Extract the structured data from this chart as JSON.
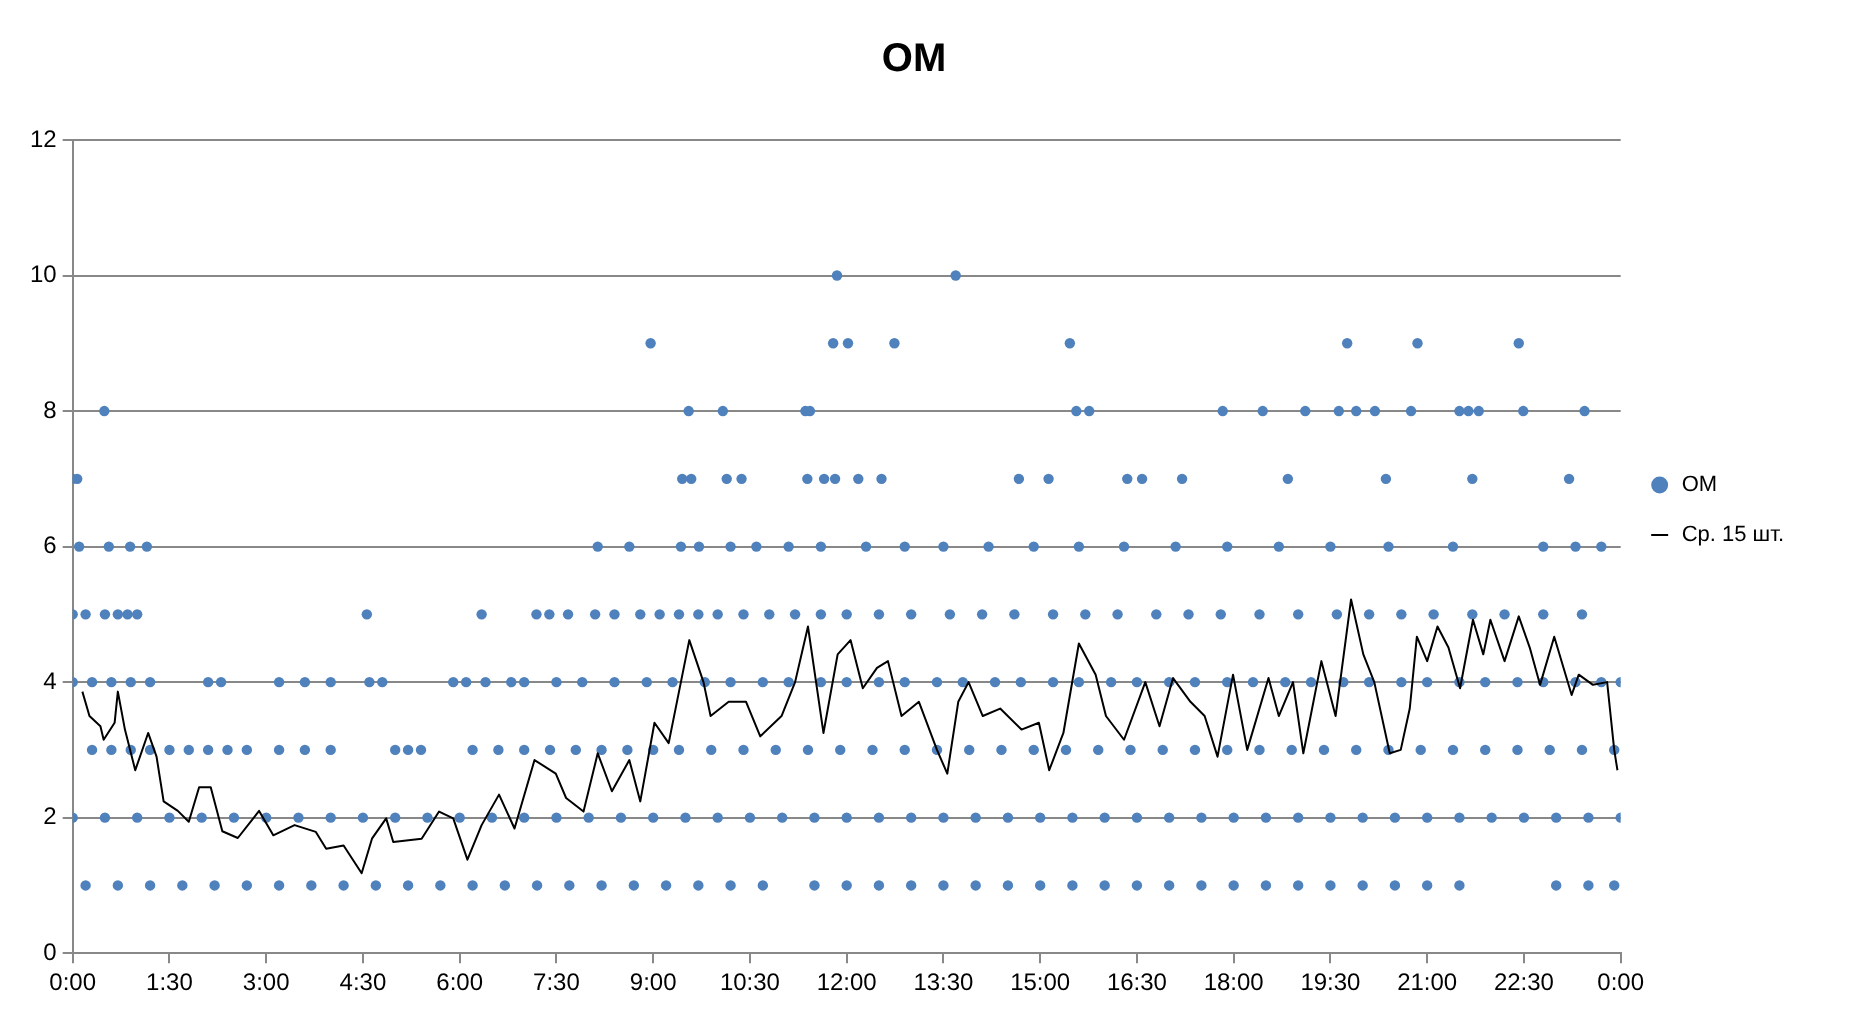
{
  "chart_data": {
    "type": "scatter",
    "title": "ОМ",
    "xlim": [
      0,
      24
    ],
    "xticks": [
      {
        "value": 0,
        "label": "0:00"
      },
      {
        "value": 1.5,
        "label": "1:30"
      },
      {
        "value": 3,
        "label": "3:00"
      },
      {
        "value": 4.5,
        "label": "4:30"
      },
      {
        "value": 6,
        "label": "6:00"
      },
      {
        "value": 7.5,
        "label": "7:30"
      },
      {
        "value": 9,
        "label": "9:00"
      },
      {
        "value": 10.5,
        "label": "10:30"
      },
      {
        "value": 12,
        "label": "12:00"
      },
      {
        "value": 13.5,
        "label": "13:30"
      },
      {
        "value": 15,
        "label": "15:00"
      },
      {
        "value": 16.5,
        "label": "16:30"
      },
      {
        "value": 18,
        "label": "18:00"
      },
      {
        "value": 19.5,
        "label": "19:30"
      },
      {
        "value": 21,
        "label": "21:00"
      },
      {
        "value": 22.5,
        "label": "22:30"
      },
      {
        "value": 24,
        "label": "0:00"
      }
    ],
    "ylim": [
      0,
      12
    ],
    "yticks": [
      0,
      2,
      4,
      6,
      8,
      10,
      12
    ],
    "grid": "y",
    "legend": "right",
    "series": [
      {
        "type": "scatter",
        "name": "ОМ",
        "color": "#4f81bd",
        "marker": "circle",
        "x": [
          11.85,
          13.69,
          8.96,
          11.79,
          12.02,
          12.74,
          15.46,
          19.76,
          20.85,
          22.42,
          0.49,
          9.55,
          10.08,
          11.36,
          11.43,
          15.56,
          15.76,
          17.83,
          18.45,
          19.11,
          19.63,
          19.9,
          20.19,
          20.75,
          21.5,
          21.64,
          21.8,
          22.49,
          23.44,
          0.0,
          0.07,
          9.45,
          9.59,
          10.14,
          10.37,
          11.39,
          11.65,
          11.82,
          12.18,
          12.54,
          14.67,
          15.13,
          16.35,
          16.58,
          17.2,
          18.84,
          20.36,
          21.7,
          23.2,
          0.1,
          0.56,
          0.89,
          1.15,
          8.14,
          8.63,
          9.43,
          9.71,
          10.2,
          10.6,
          11.1,
          11.6,
          12.3,
          12.9,
          13.5,
          14.2,
          14.9,
          15.6,
          16.3,
          17.1,
          17.9,
          18.7,
          19.5,
          20.4,
          21.4,
          22.8,
          23.3,
          23.7,
          0.0,
          0.2,
          0.5,
          0.7,
          0.85,
          1.0,
          4.56,
          6.34,
          7.19,
          7.39,
          7.68,
          8.1,
          8.4,
          8.8,
          9.1,
          9.4,
          9.7,
          10.0,
          10.4,
          10.8,
          11.2,
          11.6,
          12.0,
          12.5,
          13.0,
          13.6,
          14.1,
          14.6,
          15.2,
          15.7,
          16.2,
          16.8,
          17.3,
          17.8,
          18.4,
          19.0,
          19.6,
          20.1,
          20.6,
          21.1,
          21.7,
          22.2,
          22.8,
          23.4,
          0.0,
          0.3,
          0.6,
          0.9,
          1.2,
          2.1,
          2.3,
          3.2,
          3.6,
          4.0,
          4.6,
          4.8,
          5.9,
          6.1,
          6.4,
          6.8,
          7.0,
          7.5,
          7.9,
          8.4,
          8.9,
          9.3,
          9.8,
          10.2,
          10.7,
          11.1,
          11.6,
          12.0,
          12.5,
          12.9,
          13.4,
          13.8,
          14.3,
          14.7,
          15.2,
          15.6,
          16.1,
          16.5,
          17.0,
          17.4,
          17.9,
          18.3,
          18.8,
          19.2,
          19.7,
          20.1,
          20.6,
          21.0,
          21.5,
          21.9,
          22.4,
          22.8,
          23.3,
          23.7,
          24.0,
          0.3,
          0.6,
          0.9,
          1.2,
          1.5,
          1.8,
          2.1,
          2.4,
          2.7,
          3.2,
          3.6,
          4.0,
          5.0,
          5.2,
          5.4,
          6.2,
          6.6,
          7.0,
          7.4,
          7.8,
          8.2,
          8.6,
          9.0,
          9.4,
          9.9,
          10.4,
          10.9,
          11.4,
          11.9,
          12.4,
          12.9,
          13.4,
          13.9,
          14.4,
          14.9,
          15.4,
          15.9,
          16.4,
          16.9,
          17.4,
          17.9,
          18.4,
          18.9,
          19.4,
          19.9,
          20.4,
          20.9,
          21.4,
          21.9,
          22.4,
          22.9,
          23.4,
          23.9,
          0.0,
          0.5,
          1.0,
          1.5,
          2.0,
          2.5,
          3.0,
          3.5,
          4.0,
          4.5,
          5.0,
          5.5,
          6.0,
          6.5,
          7.0,
          7.5,
          8.0,
          8.5,
          9.0,
          9.5,
          10.0,
          10.5,
          11.0,
          11.5,
          12.0,
          12.5,
          13.0,
          13.5,
          14.0,
          14.5,
          15.0,
          15.5,
          16.0,
          16.5,
          17.0,
          17.5,
          18.0,
          18.5,
          19.0,
          19.5,
          20.0,
          20.5,
          21.0,
          21.5,
          22.0,
          22.5,
          23.0,
          23.5,
          24.0,
          0.2,
          0.7,
          1.2,
          1.7,
          2.2,
          2.7,
          3.2,
          3.7,
          4.2,
          4.7,
          5.2,
          5.7,
          6.2,
          6.7,
          7.2,
          7.7,
          8.2,
          8.7,
          9.2,
          9.7,
          10.2,
          10.7,
          11.5,
          12.0,
          12.5,
          13.0,
          13.5,
          14.0,
          14.5,
          15.0,
          15.5,
          16.0,
          16.5,
          17.0,
          17.5,
          18.0,
          18.5,
          19.0,
          19.5,
          20.0,
          20.5,
          21.0,
          21.5,
          23.0,
          23.5,
          23.9
        ],
        "values": [
          10,
          10,
          9,
          9,
          9,
          9,
          9,
          9,
          9,
          9,
          8,
          8,
          8,
          8,
          8,
          8,
          8,
          8,
          8,
          8,
          8,
          8,
          8,
          8,
          8,
          8,
          8,
          8,
          8,
          7,
          7,
          7,
          7,
          7,
          7,
          7,
          7,
          7,
          7,
          7,
          7,
          7,
          7,
          7,
          7,
          7,
          7,
          7,
          7,
          6,
          6,
          6,
          6,
          6,
          6,
          6,
          6,
          6,
          6,
          6,
          6,
          6,
          6,
          6,
          6,
          6,
          6,
          6,
          6,
          6,
          6,
          6,
          6,
          6,
          6,
          6,
          6,
          5,
          5,
          5,
          5,
          5,
          5,
          5,
          5,
          5,
          5,
          5,
          5,
          5,
          5,
          5,
          5,
          5,
          5,
          5,
          5,
          5,
          5,
          5,
          5,
          5,
          5,
          5,
          5,
          5,
          5,
          5,
          5,
          5,
          5,
          5,
          5,
          5,
          5,
          5,
          5,
          5,
          5,
          5,
          5,
          4,
          4,
          4,
          4,
          4,
          4,
          4,
          4,
          4,
          4,
          4,
          4,
          4,
          4,
          4,
          4,
          4,
          4,
          4,
          4,
          4,
          4,
          4,
          4,
          4,
          4,
          4,
          4,
          4,
          4,
          4,
          4,
          4,
          4,
          4,
          4,
          4,
          4,
          4,
          4,
          4,
          4,
          4,
          4,
          4,
          4,
          4,
          4,
          4,
          4,
          4,
          4,
          4,
          4,
          4,
          3,
          3,
          3,
          3,
          3,
          3,
          3,
          3,
          3,
          3,
          3,
          3,
          3,
          3,
          3,
          3,
          3,
          3,
          3,
          3,
          3,
          3,
          3,
          3,
          3,
          3,
          3,
          3,
          3,
          3,
          3,
          3,
          3,
          3,
          3,
          3,
          3,
          3,
          3,
          3,
          3,
          3,
          3,
          3,
          3,
          3,
          3,
          3,
          3,
          3,
          3,
          3,
          3,
          2,
          2,
          2,
          2,
          2,
          2,
          2,
          2,
          2,
          2,
          2,
          2,
          2,
          2,
          2,
          2,
          2,
          2,
          2,
          2,
          2,
          2,
          2,
          2,
          2,
          2,
          2,
          2,
          2,
          2,
          2,
          2,
          2,
          2,
          2,
          2,
          2,
          2,
          2,
          2,
          2,
          2,
          2,
          2,
          2,
          2,
          2,
          2,
          2,
          1,
          1,
          1,
          1,
          1,
          1,
          1,
          1,
          1,
          1,
          1,
          1,
          1,
          1,
          1,
          1,
          1,
          1,
          1,
          1,
          1,
          1,
          1,
          1,
          1,
          1,
          1,
          1,
          1,
          1,
          1,
          1,
          1,
          1,
          1,
          1,
          1,
          1,
          1,
          1,
          1,
          1,
          1,
          1,
          1,
          1
        ]
      },
      {
        "type": "line",
        "name": "Ср. 15 шт.",
        "color": "#000000",
        "marker": "none",
        "x": [
          0.15,
          0.26,
          0.43,
          0.48,
          0.65,
          0.7,
          0.81,
          0.97,
          1.17,
          1.3,
          1.41,
          1.63,
          1.8,
          1.96,
          2.14,
          2.32,
          2.56,
          2.89,
          3.11,
          3.44,
          3.77,
          3.93,
          4.2,
          4.48,
          4.64,
          4.86,
          4.97,
          5.41,
          5.68,
          5.9,
          6.12,
          6.34,
          6.61,
          6.85,
          7.16,
          7.49,
          7.65,
          7.92,
          8.14,
          8.36,
          8.63,
          8.8,
          9.02,
          9.24,
          9.56,
          9.78,
          9.89,
          10.17,
          10.44,
          10.66,
          10.99,
          11.2,
          11.4,
          11.64,
          11.86,
          12.06,
          12.25,
          12.47,
          12.64,
          12.85,
          13.12,
          13.4,
          13.56,
          13.73,
          13.89,
          14.11,
          14.38,
          14.71,
          14.98,
          15.14,
          15.36,
          15.6,
          15.86,
          16.02,
          16.3,
          16.63,
          16.85,
          17.06,
          17.33,
          17.55,
          17.75,
          17.99,
          18.21,
          18.54,
          18.7,
          18.92,
          19.08,
          19.36,
          19.58,
          19.82,
          20.01,
          20.18,
          20.42,
          20.59,
          20.73,
          20.84,
          21.0,
          21.16,
          21.33,
          21.51,
          21.71,
          21.87,
          21.98,
          22.2,
          22.42,
          22.59,
          22.75,
          22.97,
          23.24,
          23.35,
          23.57,
          23.79,
          23.9,
          23.95
        ],
        "values": [
          3.86,
          3.5,
          3.35,
          3.15,
          3.4,
          3.86,
          3.3,
          2.7,
          3.25,
          2.9,
          2.24,
          2.1,
          1.94,
          2.45,
          2.45,
          1.8,
          1.7,
          2.1,
          1.74,
          1.89,
          1.79,
          1.54,
          1.59,
          1.18,
          1.69,
          1.99,
          1.64,
          1.69,
          2.09,
          1.99,
          1.38,
          1.89,
          2.34,
          1.84,
          2.85,
          2.65,
          2.29,
          2.09,
          2.95,
          2.39,
          2.85,
          2.24,
          3.4,
          3.1,
          4.62,
          4.0,
          3.5,
          3.71,
          3.71,
          3.2,
          3.5,
          4.0,
          4.82,
          3.25,
          4.41,
          4.62,
          3.91,
          4.21,
          4.31,
          3.5,
          3.71,
          3.0,
          2.65,
          3.71,
          4.0,
          3.5,
          3.61,
          3.3,
          3.4,
          2.7,
          3.25,
          4.57,
          4.11,
          3.5,
          3.15,
          4.0,
          3.35,
          4.06,
          3.71,
          3.5,
          2.9,
          4.11,
          3.0,
          4.06,
          3.5,
          4.0,
          2.95,
          4.31,
          3.5,
          5.22,
          4.41,
          4.0,
          2.95,
          3.0,
          3.61,
          4.67,
          4.31,
          4.82,
          4.51,
          3.91,
          4.92,
          4.41,
          4.92,
          4.31,
          4.97,
          4.51,
          3.96,
          4.67,
          3.81,
          4.11,
          3.96,
          4.0,
          3.0,
          2.7
        ]
      }
    ]
  }
}
